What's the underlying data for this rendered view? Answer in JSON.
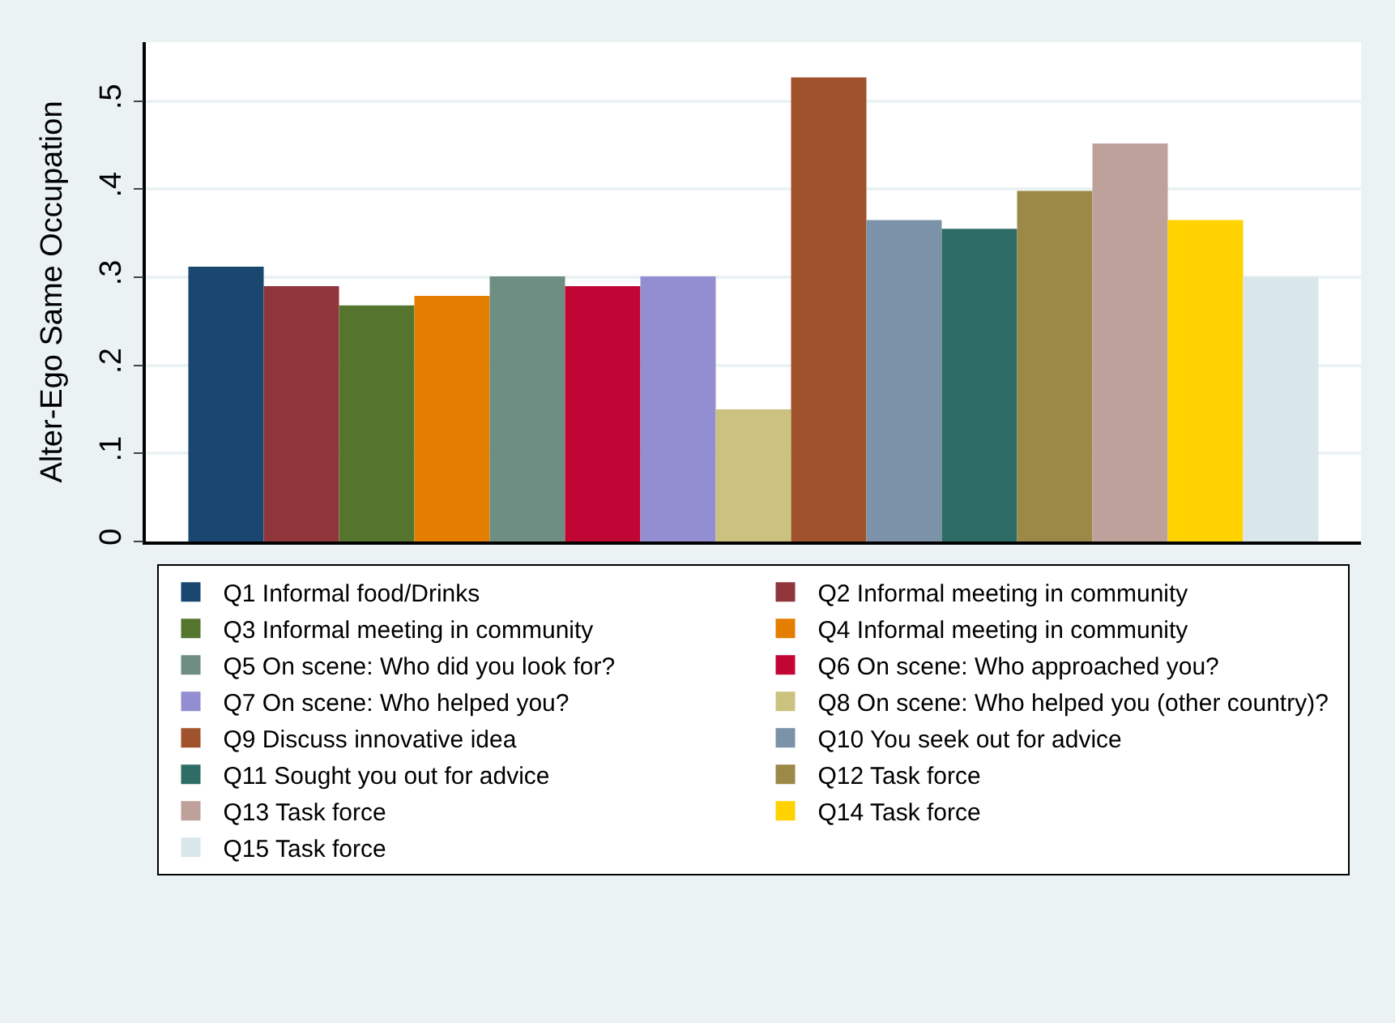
{
  "chart_data": {
    "type": "bar",
    "ylabel": "Alter-Ego Same Occupation",
    "categories": [
      null
    ],
    "ylim": [
      0,
      0.567
    ],
    "yticks": [
      0,
      {
        "value": 0.1,
        "label": ".1"
      },
      {
        "value": 0.2,
        "label": ".2"
      },
      {
        "value": 0.3,
        "label": ".3"
      },
      {
        "value": 0.4,
        "label": ".4"
      },
      {
        "value": 0.5,
        "label": ".5"
      }
    ],
    "grid": "y",
    "legend": "bottom",
    "series": [
      {
        "name": "Q1 Informal food/Drinks",
        "color": "#1a476f",
        "values": [
          0.312
        ]
      },
      {
        "name": "Q2 Informal meeting in community",
        "color": "#90353b",
        "values": [
          0.29
        ]
      },
      {
        "name": "Q3 Informal meeting in community",
        "color": "#55752f",
        "values": [
          0.268
        ]
      },
      {
        "name": "Q4 Informal meeting in community",
        "color": "#e37e00",
        "values": [
          0.279
        ]
      },
      {
        "name": "Q5 On scene: Who did you look for?",
        "color": "#6e8e84",
        "values": [
          0.301
        ]
      },
      {
        "name": "Q6 On scene: Who approached you?",
        "color": "#c10534",
        "values": [
          0.29
        ]
      },
      {
        "name": "Q7 On scene: Who helped you?",
        "color": "#938dd2",
        "values": [
          0.301
        ]
      },
      {
        "name": "Q8 On scene: Who helped you (other country)?",
        "color": "#cac27e",
        "values": [
          0.15
        ]
      },
      {
        "name": "Q9 Discuss innovative idea",
        "color": "#a0522d",
        "values": [
          0.527
        ]
      },
      {
        "name": "Q10 You seek out for advice",
        "color": "#7b92a8",
        "values": [
          0.365
        ]
      },
      {
        "name": "Q11 Sought you out for advice",
        "color": "#2d6d66",
        "values": [
          0.355
        ]
      },
      {
        "name": "Q12 Task force",
        "color": "#9c8847",
        "values": [
          0.398
        ]
      },
      {
        "name": "Q13 Task force",
        "color": "#bfa19c",
        "values": [
          0.452
        ]
      },
      {
        "name": "Q14 Task force",
        "color": "#ffd200",
        "values": [
          0.365
        ]
      },
      {
        "name": "Q15 Task force",
        "color": "#d9e6eb",
        "values": [
          0.3
        ]
      }
    ]
  }
}
